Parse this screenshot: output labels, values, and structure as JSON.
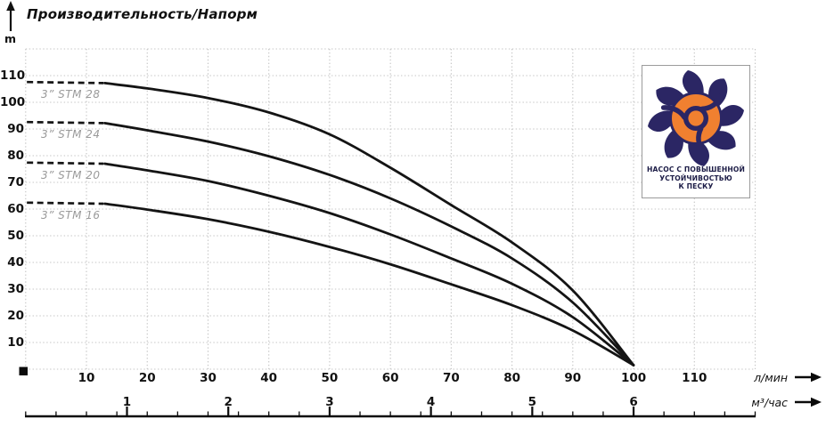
{
  "title": "Производительность/Напорм",
  "colors": {
    "curve": "#141414",
    "grid": "#c4c4c4",
    "text": "#111111",
    "muted_label": "#9a9a9a",
    "badge_navy": "#2b2664",
    "badge_orange": "#f08030",
    "badge_border": "#9b9b9b"
  },
  "y_axis": {
    "unit_label": "m"
  },
  "x_axis": {
    "primary_unit_label": "л/мин",
    "secondary_unit_label": "м³/час"
  },
  "badge": {
    "lines": [
      "НАСОС С ПОВЫШЕННОЙ",
      "УСТОЙЧИВОСТЬЮ",
      "К ПЕСКУ"
    ]
  },
  "chart_data": {
    "type": "line",
    "title": "Производительность/Напорм",
    "ylabel": "m",
    "xlabel_primary": "л/мин",
    "xlabel_secondary": "м³/час",
    "xlim_lmin": [
      0,
      120
    ],
    "ylim_m": [
      0,
      120
    ],
    "grid": true,
    "y_ticks": [
      10,
      20,
      30,
      40,
      50,
      60,
      70,
      80,
      90,
      100,
      110
    ],
    "x_ticks_lmin": [
      10,
      20,
      30,
      40,
      50,
      60,
      70,
      80,
      90,
      100,
      110
    ],
    "x_ticks_m3h": [
      1,
      2,
      3,
      4,
      5,
      6
    ],
    "m3h_to_lmin": 16.6667,
    "series": [
      {
        "name": "3” STM 28",
        "head_m": 107.6,
        "dash_from_q": 0.2,
        "dash_to_q": 12.8,
        "points": [
          [
            13,
            107.2
          ],
          [
            20,
            105.2
          ],
          [
            30,
            101.6
          ],
          [
            40,
            96.2
          ],
          [
            50,
            88.0
          ],
          [
            60,
            75.5
          ],
          [
            70,
            61.5
          ],
          [
            80,
            47.5
          ],
          [
            90,
            29.5
          ],
          [
            100,
            1.5
          ]
        ]
      },
      {
        "name": "3” STM 24",
        "head_m": 92.6,
        "dash_from_q": 0.2,
        "dash_to_q": 12.8,
        "points": [
          [
            13,
            92.2
          ],
          [
            20,
            89.5
          ],
          [
            30,
            85.3
          ],
          [
            40,
            79.8
          ],
          [
            50,
            72.8
          ],
          [
            60,
            64.0
          ],
          [
            70,
            53.5
          ],
          [
            80,
            41.5
          ],
          [
            90,
            25.0
          ],
          [
            100,
            1.5
          ]
        ]
      },
      {
        "name": "3” STM 20",
        "head_m": 77.4,
        "dash_from_q": 0.2,
        "dash_to_q": 12.8,
        "points": [
          [
            13,
            77.0
          ],
          [
            20,
            74.5
          ],
          [
            30,
            70.5
          ],
          [
            40,
            65.0
          ],
          [
            50,
            58.5
          ],
          [
            60,
            50.5
          ],
          [
            70,
            41.5
          ],
          [
            80,
            32.0
          ],
          [
            90,
            19.5
          ],
          [
            100,
            1.5
          ]
        ]
      },
      {
        "name": "3” STM 16",
        "head_m": 62.4,
        "dash_from_q": 0.2,
        "dash_to_q": 12.8,
        "points": [
          [
            13,
            62.0
          ],
          [
            20,
            59.8
          ],
          [
            30,
            56.2
          ],
          [
            40,
            51.5
          ],
          [
            50,
            45.8
          ],
          [
            60,
            39.3
          ],
          [
            70,
            31.8
          ],
          [
            80,
            24.0
          ],
          [
            90,
            14.5
          ],
          [
            100,
            1.5
          ]
        ]
      }
    ]
  }
}
